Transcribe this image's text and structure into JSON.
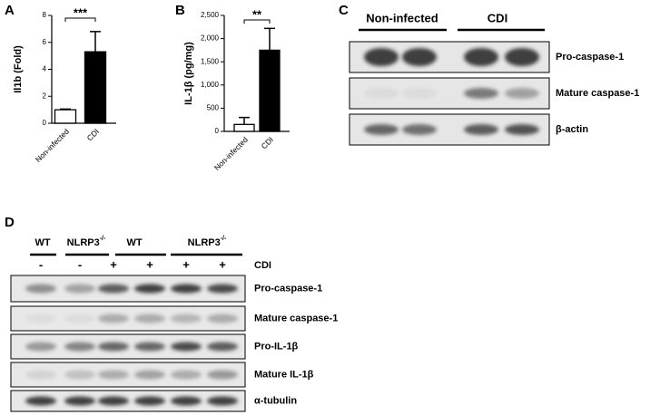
{
  "chart_data": [
    {
      "type": "bar",
      "panel": "A",
      "ylabel": "Il1b (Fold)",
      "categories": [
        "Non-infected",
        "CDI"
      ],
      "values": [
        1.0,
        5.3
      ],
      "errors": [
        0.05,
        1.5
      ],
      "colors": [
        "#ffffff",
        "#000000"
      ],
      "ylim": [
        0,
        8
      ],
      "yticks": [
        0,
        2,
        4,
        6,
        8
      ],
      "significance": "***"
    },
    {
      "type": "bar",
      "panel": "B",
      "ylabel": "IL-1β (pg/mg)",
      "categories": [
        "Non-infected",
        "CDI"
      ],
      "values": [
        150,
        1750
      ],
      "errors": [
        150,
        470
      ],
      "colors": [
        "#ffffff",
        "#000000"
      ],
      "ylim": [
        0,
        2500
      ],
      "yticks": [
        0,
        500,
        {
          "value": 1000,
          "label": "1,000"
        },
        {
          "value": 1500,
          "label": "1,500"
        },
        {
          "value": 2000,
          "label": "2,000"
        },
        {
          "value": 2500,
          "label": "2,500"
        }
      ],
      "significance": "**"
    }
  ],
  "panel_c": {
    "panel": "C",
    "groups": [
      "Non-infected",
      "CDI"
    ],
    "rows": [
      "Pro-caspase-1",
      "Mature caspase-1",
      "β-actin"
    ]
  },
  "panel_d": {
    "panel": "D",
    "groups": [
      {
        "base": "WT"
      },
      {
        "base": "NLRP3",
        "sup": "-/-"
      },
      {
        "base": "WT"
      },
      {
        "base": "NLRP3",
        "sup": "-/-"
      }
    ],
    "treatment": "CDI",
    "signs": [
      "-",
      "-",
      "+",
      "+",
      "+",
      "+"
    ],
    "rows": [
      "Pro-caspase-1",
      "Mature caspase-1",
      "Pro-IL-1β",
      "Mature IL-1β",
      "α-tubulin"
    ]
  }
}
